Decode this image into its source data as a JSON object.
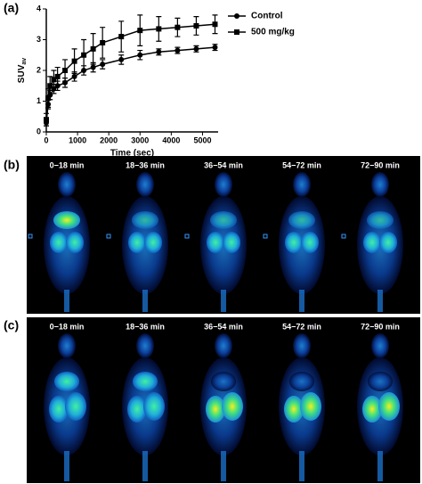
{
  "panels": {
    "a": "(a)",
    "b": "(b)",
    "c": "(c)"
  },
  "frames": [
    "0−18 min",
    "18−36 min",
    "36−54 min",
    "54−72 min",
    "72−90 min"
  ],
  "chart_data": {
    "type": "line",
    "xlabel": "Time (sec)",
    "ylabel": "SUV",
    "ylabel_sub": "av",
    "x": [
      0,
      60,
      120,
      240,
      360,
      600,
      900,
      1200,
      1500,
      1800,
      2400,
      3000,
      3600,
      4200,
      4800,
      5400
    ],
    "series": [
      {
        "name": "Control",
        "color": "#000000",
        "marker": "circle",
        "values": [
          0.3,
          0.9,
          1.2,
          1.4,
          1.5,
          1.6,
          1.8,
          2.0,
          2.1,
          2.2,
          2.35,
          2.5,
          2.6,
          2.65,
          2.7,
          2.75
        ],
        "errors": [
          0.1,
          0.15,
          0.15,
          0.15,
          0.15,
          0.15,
          0.15,
          0.15,
          0.15,
          0.15,
          0.15,
          0.15,
          0.1,
          0.1,
          0.1,
          0.1
        ]
      },
      {
        "name": "500 mg/kg",
        "color": "#000000",
        "marker": "square",
        "values": [
          0.4,
          1.1,
          1.5,
          1.7,
          1.8,
          2.0,
          2.3,
          2.5,
          2.7,
          2.9,
          3.1,
          3.3,
          3.35,
          3.4,
          3.45,
          3.5
        ],
        "errors": [
          0.2,
          0.3,
          0.3,
          0.3,
          0.3,
          0.35,
          0.4,
          0.5,
          0.5,
          0.5,
          0.5,
          0.5,
          0.4,
          0.3,
          0.3,
          0.3
        ]
      }
    ],
    "xlim": [
      0,
      5500
    ],
    "xticks": [
      0,
      1000,
      2000,
      3000,
      4000,
      5000
    ],
    "ylim": [
      0,
      4
    ],
    "yticks": [
      0,
      1,
      2,
      3,
      4
    ]
  }
}
